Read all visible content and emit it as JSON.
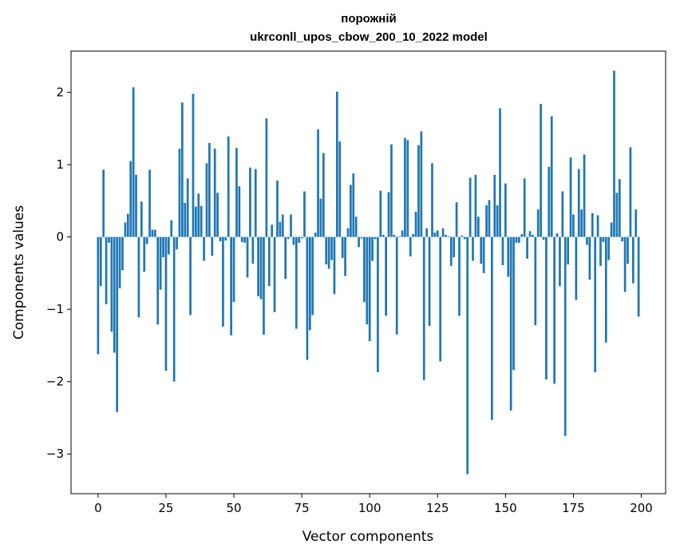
{
  "chart_data": {
    "type": "bar",
    "title": "порожній",
    "subtitle": "ukrconll_upos_cbow_200_10_2022 model",
    "xlabel": "Vector components",
    "ylabel": "Components values",
    "xlim": [
      -9.95,
      208.95
    ],
    "ylim": [
      -3.55,
      2.57
    ],
    "xticks": [
      0,
      25,
      50,
      75,
      100,
      125,
      150,
      175,
      200
    ],
    "yticks": [
      -3,
      -2,
      -1,
      0,
      1,
      2
    ],
    "grid": false,
    "bar_color": "#1f77b4",
    "x": [
      0,
      1,
      2,
      3,
      4,
      5,
      6,
      7,
      8,
      9,
      10,
      11,
      12,
      13,
      14,
      15,
      16,
      17,
      18,
      19,
      20,
      21,
      22,
      23,
      24,
      25,
      26,
      27,
      28,
      29,
      30,
      31,
      32,
      33,
      34,
      35,
      36,
      37,
      38,
      39,
      40,
      41,
      42,
      43,
      44,
      45,
      46,
      47,
      48,
      49,
      50,
      51,
      52,
      53,
      54,
      55,
      56,
      57,
      58,
      59,
      60,
      61,
      62,
      63,
      64,
      65,
      66,
      67,
      68,
      69,
      70,
      71,
      72,
      73,
      74,
      75,
      76,
      77,
      78,
      79,
      80,
      81,
      82,
      83,
      84,
      85,
      86,
      87,
      88,
      89,
      90,
      91,
      92,
      93,
      94,
      95,
      96,
      97,
      98,
      99,
      100,
      101,
      102,
      103,
      104,
      105,
      106,
      107,
      108,
      109,
      110,
      111,
      112,
      113,
      114,
      115,
      116,
      117,
      118,
      119,
      120,
      121,
      122,
      123,
      124,
      125,
      126,
      127,
      128,
      129,
      130,
      131,
      132,
      133,
      134,
      135,
      136,
      137,
      138,
      139,
      140,
      141,
      142,
      143,
      144,
      145,
      146,
      147,
      148,
      149,
      150,
      151,
      152,
      153,
      154,
      155,
      156,
      157,
      158,
      159,
      160,
      161,
      162,
      163,
      164,
      165,
      166,
      167,
      168,
      169,
      170,
      171,
      172,
      173,
      174,
      175,
      176,
      177,
      178,
      179,
      180,
      181,
      182,
      183,
      184,
      185,
      186,
      187,
      188,
      189,
      190,
      191,
      192,
      193,
      194,
      195,
      196,
      197,
      198,
      199
    ],
    "values": [
      -1.62,
      -0.68,
      0.93,
      -0.93,
      -0.08,
      -1.31,
      -1.6,
      -2.42,
      -0.71,
      -0.46,
      0.2,
      0.32,
      1.05,
      2.07,
      0.86,
      -1.11,
      0.49,
      -0.48,
      -0.1,
      0.93,
      0.1,
      0.1,
      -1.21,
      -0.73,
      -0.28,
      -1.85,
      -0.24,
      0.23,
      -2.0,
      -0.17,
      1.22,
      1.86,
      0.47,
      0.81,
      -1.08,
      1.98,
      0.42,
      0.6,
      0.43,
      -0.33,
      1.02,
      1.3,
      -0.26,
      1.22,
      0.61,
      -0.06,
      -1.24,
      -0.05,
      1.39,
      -1.36,
      -0.9,
      1.23,
      0.7,
      -0.07,
      -0.08,
      -0.56,
      0.96,
      -0.37,
      0.94,
      -0.82,
      -0.86,
      -1.35,
      1.64,
      -0.68,
      0.17,
      -1.04,
      0.78,
      0.21,
      0.31,
      -0.58,
      -0.03,
      0.31,
      -0.11,
      -1.27,
      -0.08,
      -0.02,
      0.63,
      -1.7,
      -1.29,
      -1.08,
      0.06,
      1.49,
      0.53,
      1.16,
      -0.38,
      -0.44,
      -0.32,
      -0.79,
      2.01,
      1.32,
      -0.29,
      -0.54,
      0.12,
      0.72,
      0.88,
      0.28,
      -0.14,
      -0.02,
      -0.9,
      -1.21,
      -1.44,
      -0.33,
      -0.03,
      -1.87,
      0.64,
      0.03,
      -1.09,
      0.62,
      1.28,
      0.03,
      -1.35,
      0.01,
      0.09,
      1.37,
      1.34,
      -0.27,
      0.04,
      0.35,
      1.27,
      1.46,
      -1.98,
      0.12,
      -1.23,
      1.02,
      0.06,
      0.09,
      -1.72,
      0.12,
      0.03,
      0.01,
      -0.4,
      -0.28,
      0.48,
      -1.09,
      0.02,
      -0.03,
      -3.28,
      0.82,
      -0.33,
      0.86,
      0.28,
      -0.37,
      -0.5,
      0.44,
      0.51,
      -2.53,
      0.86,
      0.44,
      1.78,
      -0.39,
      0.74,
      -0.55,
      -2.4,
      -1.84,
      -0.08,
      -0.08,
      0.04,
      0.81,
      -0.3,
      0.08,
      0.03,
      -1.22,
      0.38,
      1.84,
      -0.04,
      -1.97,
      0.97,
      1.67,
      -2.03,
      0.05,
      -0.68,
      0.63,
      -2.75,
      -0.38,
      1.1,
      0.31,
      -0.87,
      0.94,
      0.38,
      1.14,
      -0.11,
      -0.59,
      0.33,
      -1.87,
      0.3,
      -0.4,
      -0.07,
      -1.46,
      -0.32,
      0.2,
      2.3,
      0.61,
      0.8,
      -0.06,
      -0.76,
      -0.37,
      1.24,
      -0.64,
      0.38,
      -1.1
    ]
  }
}
